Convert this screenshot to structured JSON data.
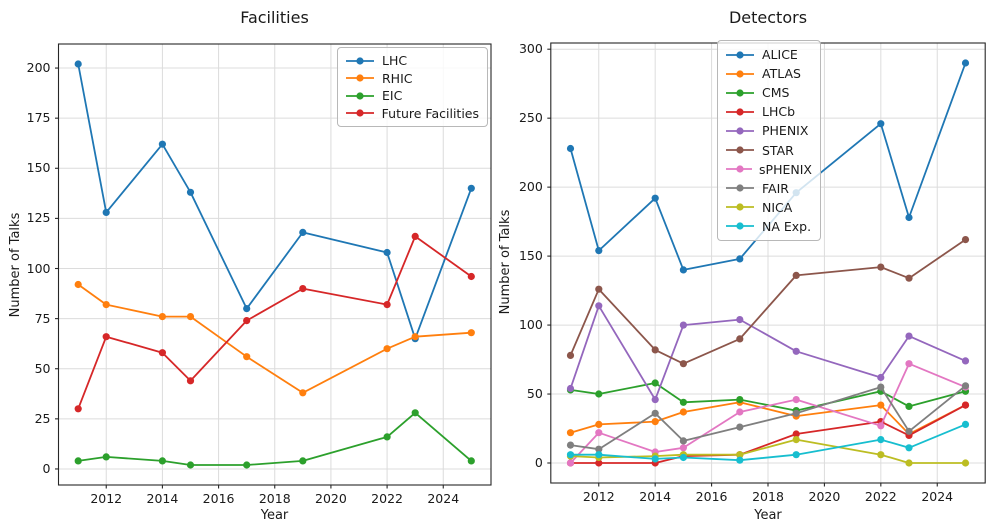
{
  "figure": {
    "background": "#ffffff"
  },
  "chart_data": [
    {
      "type": "line",
      "title": "Facilities",
      "xlabel": "Year",
      "ylabel": "Number of Talks",
      "grid": true,
      "legend_position": "upper-right",
      "x": [
        2011,
        2012,
        2014,
        2015,
        2017,
        2019,
        2022,
        2023,
        2025
      ],
      "xticks": [
        2012,
        2014,
        2016,
        2018,
        2020,
        2022,
        2024
      ],
      "yticks": [
        0,
        25,
        50,
        75,
        100,
        125,
        150,
        175,
        200
      ],
      "xlim": [
        2010.3,
        2025.7
      ],
      "ylim": [
        -8,
        212
      ],
      "series": [
        {
          "name": "LHC",
          "color": "#1f77b4",
          "values": [
            202,
            128,
            162,
            138,
            80,
            118,
            108,
            65,
            140
          ]
        },
        {
          "name": "RHIC",
          "color": "#ff7f0e",
          "values": [
            92,
            82,
            76,
            76,
            56,
            38,
            60,
            66,
            68
          ]
        },
        {
          "name": "EIC",
          "color": "#2ca02c",
          "values": [
            4,
            6,
            4,
            2,
            2,
            4,
            16,
            28,
            4
          ]
        },
        {
          "name": "Future Facilities",
          "color": "#d62728",
          "values": [
            30,
            66,
            58,
            44,
            74,
            90,
            82,
            116,
            96
          ]
        }
      ]
    },
    {
      "type": "line",
      "title": "Detectors",
      "xlabel": "Year",
      "ylabel": "Number of Talks",
      "grid": true,
      "legend_position": "upper-center",
      "x": [
        2011,
        2012,
        2014,
        2015,
        2017,
        2019,
        2022,
        2023,
        2025
      ],
      "xticks": [
        2012,
        2014,
        2016,
        2018,
        2020,
        2022,
        2024
      ],
      "yticks": [
        0,
        50,
        100,
        150,
        200,
        250,
        300
      ],
      "xlim": [
        2010.3,
        2025.7
      ],
      "ylim": [
        -14.5,
        304.5
      ],
      "series": [
        {
          "name": "ALICE",
          "color": "#1f77b4",
          "values": [
            228,
            154,
            192,
            140,
            148,
            196,
            246,
            178,
            290
          ]
        },
        {
          "name": "ATLAS",
          "color": "#ff7f0e",
          "values": [
            22,
            28,
            30,
            37,
            44,
            34,
            42,
            21,
            42
          ]
        },
        {
          "name": "CMS",
          "color": "#2ca02c",
          "values": [
            53,
            50,
            58,
            44,
            46,
            38,
            52,
            41,
            52
          ]
        },
        {
          "name": "LHCb",
          "color": "#d62728",
          "values": [
            0,
            0,
            0,
            5,
            6,
            21,
            30,
            20,
            42
          ]
        },
        {
          "name": "PHENIX",
          "color": "#9467bd",
          "values": [
            54,
            114,
            46,
            100,
            104,
            81,
            62,
            92,
            74
          ]
        },
        {
          "name": "STAR",
          "color": "#8c564b",
          "values": [
            78,
            126,
            82,
            72,
            90,
            136,
            142,
            134,
            162
          ]
        },
        {
          "name": "sPHENIX",
          "color": "#e377c2",
          "values": [
            0,
            22,
            8,
            11,
            37,
            46,
            27,
            72,
            55
          ]
        },
        {
          "name": "FAIR",
          "color": "#7f7f7f",
          "values": [
            13,
            10,
            36,
            16,
            26,
            36,
            55,
            23,
            56
          ]
        },
        {
          "name": "NICA",
          "color": "#bcbd22",
          "values": [
            5,
            4,
            5,
            6,
            6,
            17,
            6,
            0,
            0
          ]
        },
        {
          "name": "NA Exp.",
          "color": "#17becf",
          "values": [
            6,
            6,
            3,
            4,
            2,
            6,
            17,
            11,
            28
          ]
        }
      ]
    }
  ]
}
